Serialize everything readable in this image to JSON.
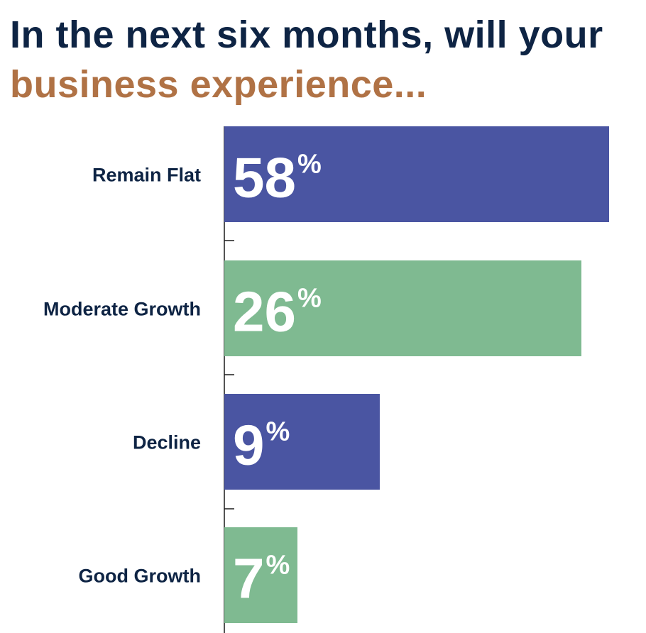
{
  "chart_data": {
    "type": "bar",
    "orientation": "horizontal",
    "title_line1": "In the next six months, will your",
    "title_line2": "business experience...",
    "categories": [
      "Remain Flat",
      "Moderate Growth",
      "Decline",
      "Good Growth"
    ],
    "values": [
      58,
      26,
      9,
      7
    ],
    "value_suffix": "%",
    "colors": [
      "#4a55a2",
      "#7fba91",
      "#4a55a2",
      "#7fba91"
    ],
    "title_colors": {
      "line1": "#0e2444",
      "line2": "#b07245"
    },
    "label_color": "#0e2444",
    "grid": false,
    "legend": "none"
  }
}
